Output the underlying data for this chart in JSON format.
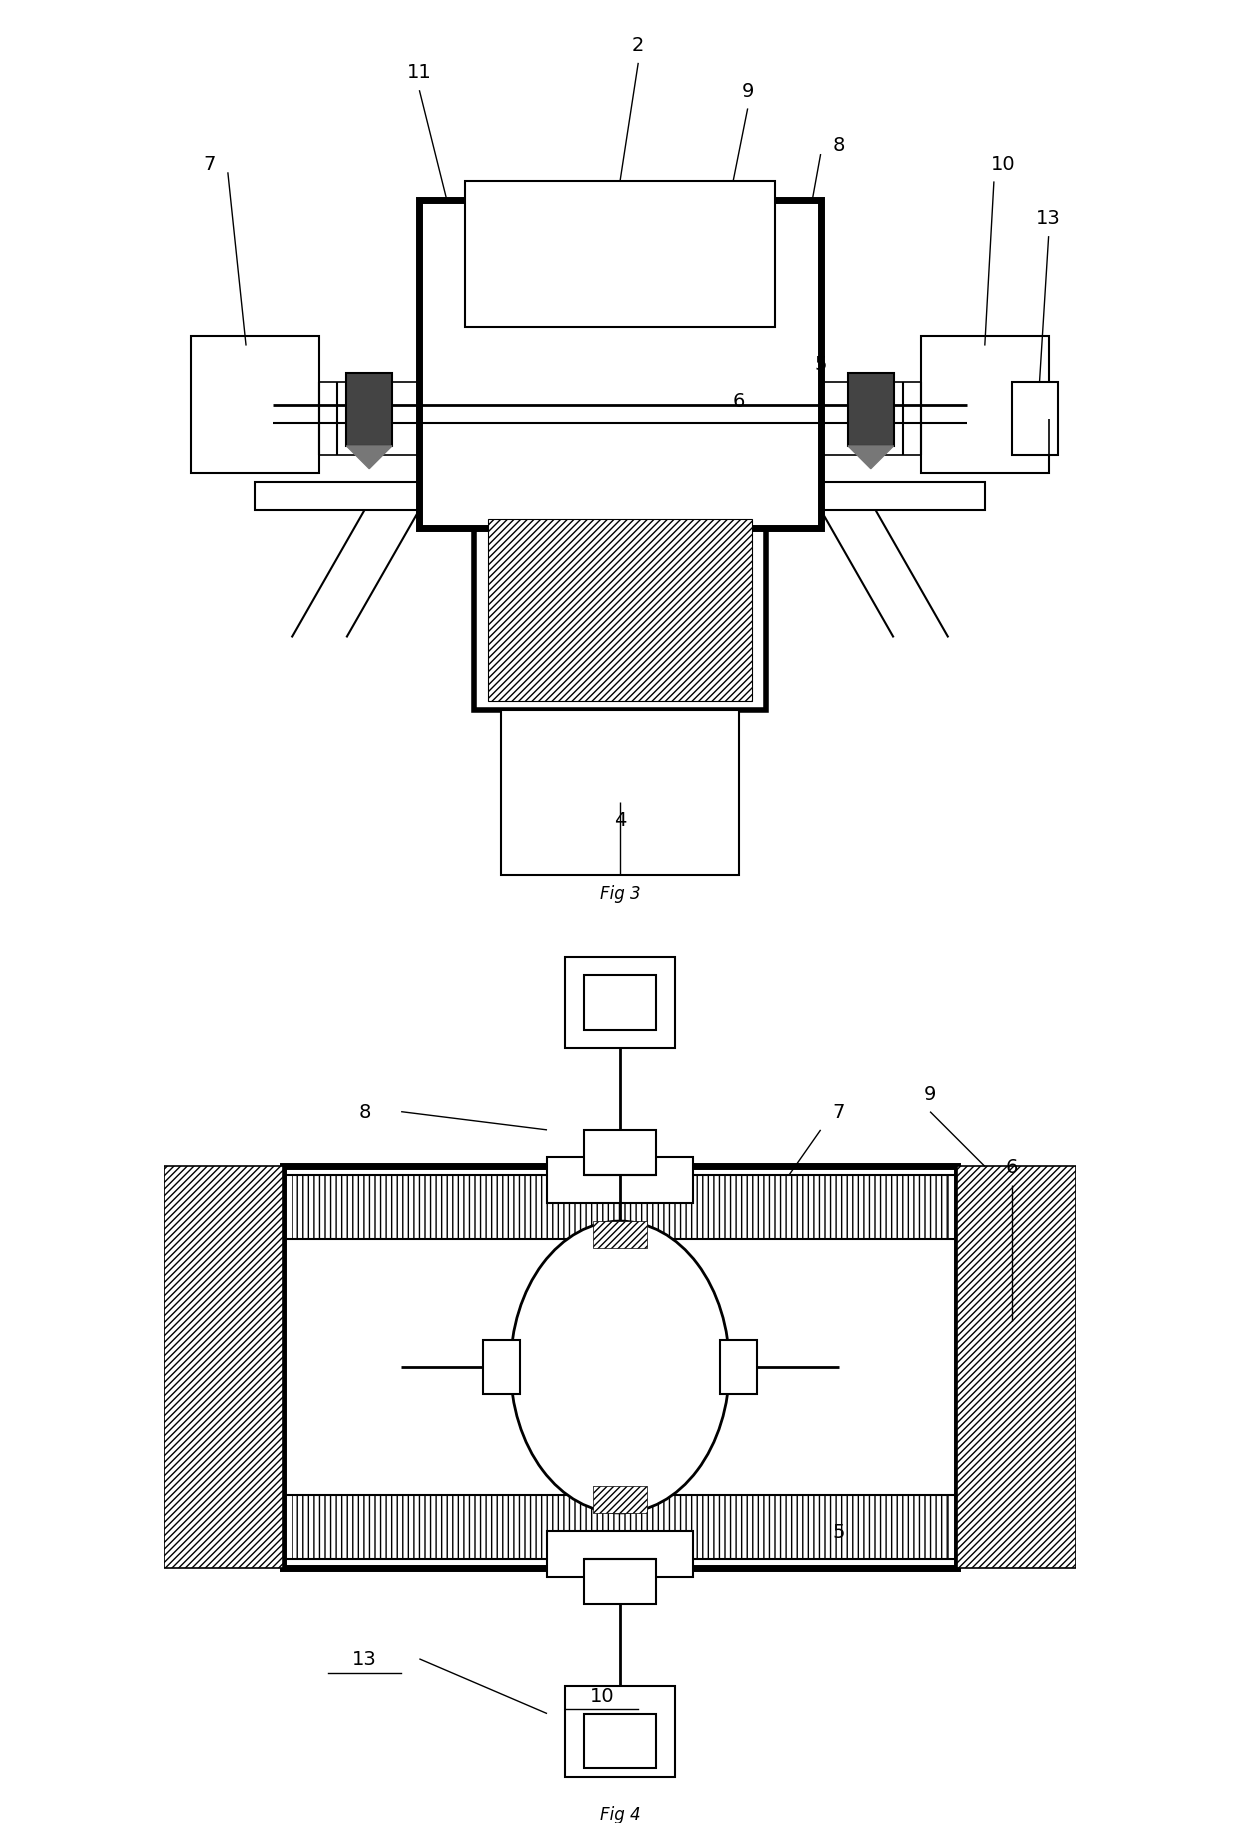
{
  "fig_width": 12.4,
  "fig_height": 18.24,
  "bg_color": "#ffffff"
}
